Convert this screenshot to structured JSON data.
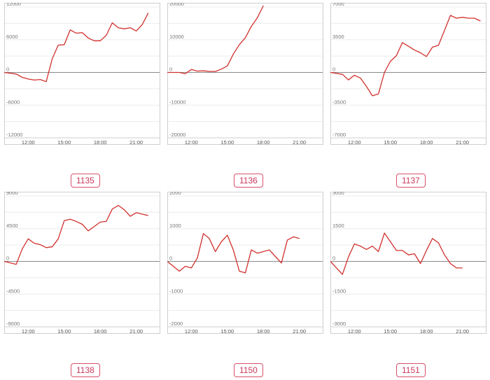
{
  "chart_data": [
    {
      "type": "line",
      "label": "1135",
      "x_ticks": [
        "12:00",
        "15:00",
        "18:00",
        "21:00"
      ],
      "y_ticks": [
        "12000",
        "6000",
        "0",
        "-6000",
        "-12000"
      ],
      "ylim": [
        -12000,
        12000
      ],
      "xlim": [
        10.0,
        23.0
      ],
      "series": [
        {
          "x": [
            10.0,
            11.0,
            11.5,
            12.0,
            12.5,
            13.0,
            13.5,
            14.0,
            14.5,
            15.0,
            15.5,
            16.0,
            16.5,
            17.0,
            17.5,
            18.0,
            18.5,
            19.0,
            19.5,
            20.0,
            20.5,
            21.0,
            21.5,
            22.0
          ],
          "y": [
            0,
            -300,
            -900,
            -1200,
            -1400,
            -1300,
            -1700,
            2500,
            5000,
            5100,
            7800,
            7200,
            7300,
            6300,
            5800,
            5800,
            6800,
            9100,
            8200,
            8000,
            8200,
            7600,
            8800,
            10900
          ]
        }
      ],
      "color": "#d0312d",
      "grid": true
    },
    {
      "type": "line",
      "label": "1136",
      "x_ticks": [
        "12:00",
        "15:00",
        "18:00",
        "21:00"
      ],
      "y_ticks": [
        "20000",
        "10000",
        "0",
        "-10000",
        "-20000"
      ],
      "ylim": [
        -20000,
        20000
      ],
      "xlim": [
        10.0,
        23.0
      ],
      "series": [
        {
          "x": [
            10.0,
            11.0,
            11.5,
            12.0,
            12.5,
            13.0,
            13.5,
            14.0,
            14.5,
            15.0,
            15.5,
            16.0,
            16.5,
            17.0,
            17.5,
            18.0
          ],
          "y": [
            0,
            0,
            -400,
            900,
            400,
            500,
            300,
            300,
            1000,
            2000,
            5600,
            8500,
            10600,
            14100,
            16700,
            20400
          ]
        }
      ],
      "color": "#d0312d",
      "grid": true
    },
    {
      "type": "line",
      "label": "1137",
      "x_ticks": [
        "12:00",
        "15:00",
        "18:00",
        "21:00"
      ],
      "y_ticks": [
        "7000",
        "3500",
        "0",
        "-3500",
        "-7000"
      ],
      "ylim": [
        -7000,
        7000
      ],
      "xlim": [
        10.0,
        23.0
      ],
      "series": [
        {
          "x": [
            10.0,
            11.0,
            11.5,
            12.0,
            12.5,
            13.0,
            13.5,
            14.0,
            14.5,
            15.0,
            15.5,
            16.0,
            16.5,
            17.0,
            17.5,
            18.0,
            18.5,
            19.0,
            19.5,
            20.0,
            20.5,
            21.0,
            21.5,
            22.0,
            22.5
          ],
          "y": [
            0,
            -200,
            -800,
            -300,
            -600,
            -1500,
            -2500,
            -2300,
            0,
            1200,
            1800,
            3200,
            2800,
            2400,
            2100,
            1700,
            2700,
            2900,
            4500,
            6100,
            5800,
            5900,
            5800,
            5800,
            5500
          ]
        }
      ],
      "color": "#d0312d",
      "grid": true
    },
    {
      "type": "line",
      "label": "1138",
      "x_ticks": [
        "12:00",
        "15:00",
        "18:00",
        "21:00"
      ],
      "y_ticks": [
        "9000",
        "4500",
        "0",
        "-4500",
        "-9000"
      ],
      "ylim": [
        -9000,
        9000
      ],
      "xlim": [
        10.0,
        23.0
      ],
      "series": [
        {
          "x": [
            10.0,
            11.0,
            11.5,
            12.0,
            12.5,
            13.0,
            13.5,
            14.0,
            14.5,
            15.0,
            15.5,
            16.0,
            16.5,
            17.0,
            17.5,
            18.0,
            18.5,
            19.0,
            19.5,
            20.0,
            20.5,
            21.0,
            21.5,
            22.0
          ],
          "y": [
            0,
            -400,
            1700,
            3100,
            2500,
            2300,
            1900,
            2000,
            3100,
            5600,
            5800,
            5500,
            5100,
            4200,
            4800,
            5400,
            5500,
            7200,
            7700,
            7100,
            6200,
            6700,
            6500,
            6300
          ]
        }
      ],
      "color": "#d0312d",
      "grid": true
    },
    {
      "type": "line",
      "label": "1150",
      "x_ticks": [
        "12:00",
        "15:00",
        "18:00",
        "21:00"
      ],
      "y_ticks": [
        "2000",
        "1000",
        "0",
        "-1000",
        "-2000"
      ],
      "ylim": [
        -2000,
        2000
      ],
      "xlim": [
        10.0,
        23.0
      ],
      "series": [
        {
          "x": [
            10.0,
            11.0,
            11.5,
            12.0,
            12.5,
            13.0,
            13.5,
            14.0,
            14.5,
            15.0,
            15.5,
            16.0,
            16.5,
            17.0,
            17.5,
            18.0,
            18.5,
            19.0,
            19.5,
            20.0,
            20.5,
            21.0
          ],
          "y": [
            0,
            -300,
            -150,
            -200,
            100,
            850,
            700,
            300,
            600,
            800,
            350,
            -300,
            -350,
            350,
            250,
            300,
            350,
            150,
            -50,
            650,
            750,
            700
          ]
        }
      ],
      "color": "#d0312d",
      "grid": true
    },
    {
      "type": "line",
      "label": "1151",
      "x_ticks": [
        "12:00",
        "15:00",
        "18:00",
        "21:00"
      ],
      "y_ticks": [
        "3000",
        "1500",
        "0",
        "-1500",
        "-3000"
      ],
      "ylim": [
        -3000,
        3000
      ],
      "xlim": [
        10.0,
        23.0
      ],
      "series": [
        {
          "x": [
            10.0,
            11.0,
            11.5,
            12.0,
            12.5,
            13.0,
            13.5,
            14.0,
            14.5,
            15.0,
            15.5,
            16.0,
            16.5,
            17.0,
            17.5,
            18.0,
            18.5,
            19.0,
            19.5,
            20.0,
            20.5,
            21.0
          ],
          "y": [
            0,
            -600,
            200,
            800,
            700,
            550,
            700,
            450,
            1300,
            900,
            500,
            500,
            300,
            350,
            -100,
            500,
            1050,
            850,
            300,
            -100,
            -300,
            -300
          ]
        }
      ],
      "color": "#d0312d",
      "grid": true
    }
  ]
}
